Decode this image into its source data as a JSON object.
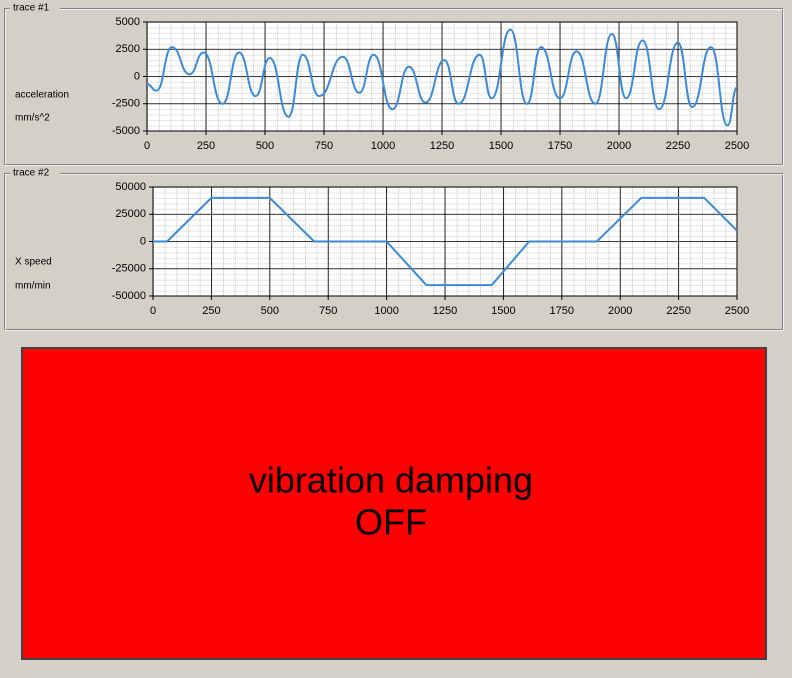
{
  "chart_data": [
    {
      "type": "line",
      "title": "trace #1",
      "y_label": "acceleration",
      "y_unit": "mm/s^2",
      "curve": "smooth",
      "grid": true,
      "x": [
        0,
        40,
        106,
        180,
        240,
        320,
        390,
        460,
        520,
        600,
        660,
        730,
        830,
        900,
        960,
        1040,
        1110,
        1180,
        1260,
        1320,
        1410,
        1460,
        1540,
        1610,
        1670,
        1750,
        1820,
        1900,
        1970,
        2030,
        2100,
        2170,
        2250,
        2310,
        2390,
        2460,
        2500
      ],
      "series": [
        {
          "color": "#3d8ad6",
          "values": [
            -700,
            -1300,
            2700,
            200,
            2200,
            -2500,
            2200,
            -1800,
            1700,
            -3700,
            2000,
            -1800,
            1800,
            -1500,
            2000,
            -3000,
            900,
            -2400,
            1500,
            -2500,
            2000,
            -2000,
            4300,
            -2500,
            2700,
            -2000,
            2300,
            -2500,
            3900,
            -2000,
            3300,
            -3000,
            3100,
            -2800,
            2700,
            -4500,
            -1000
          ]
        }
      ],
      "xlim": [
        0,
        2500
      ],
      "ylim": [
        -5000,
        5000
      ],
      "xticks": [
        0,
        250,
        500,
        750,
        1000,
        1250,
        1500,
        1750,
        2000,
        2250,
        2500
      ],
      "yticks": [
        5000,
        2500,
        0,
        -2500,
        -5000
      ]
    },
    {
      "type": "line",
      "title": "trace #2",
      "y_label": "X speed",
      "y_unit": "mm/min",
      "curve": "linear",
      "grid": true,
      "x": [
        0,
        60,
        250,
        500,
        690,
        1000,
        1170,
        1450,
        1610,
        1900,
        2090,
        2360,
        2500
      ],
      "series": [
        {
          "color": "#3d8ad6",
          "values": [
            0,
            0,
            40000,
            40000,
            0,
            0,
            -40000,
            -40000,
            0,
            0,
            40000,
            40000,
            10000
          ]
        }
      ],
      "xlim": [
        0,
        2500
      ],
      "ylim": [
        -50000,
        50000
      ],
      "xticks": [
        0,
        250,
        500,
        750,
        1000,
        1250,
        1500,
        1750,
        2000,
        2250,
        2500
      ],
      "yticks": [
        50000,
        25000,
        0,
        -25000,
        -50000
      ]
    }
  ],
  "status_panel": {
    "lines": [
      "vibration damping",
      "OFF"
    ],
    "color": "#ff0000"
  }
}
